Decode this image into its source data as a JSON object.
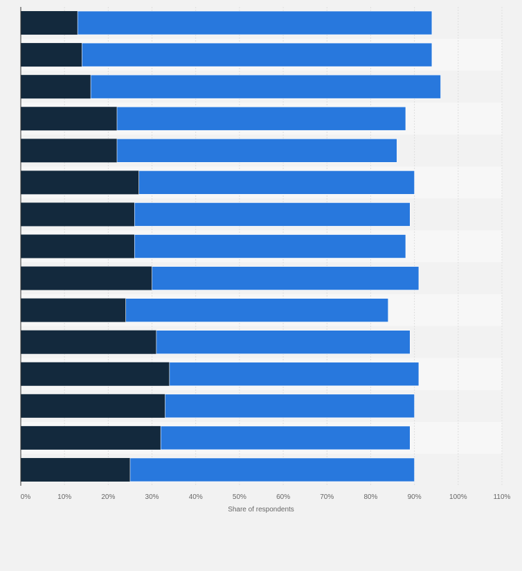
{
  "chart_data": {
    "type": "bar",
    "orientation": "horizontal",
    "stacked": true,
    "categories": [
      "",
      "",
      "",
      "",
      "",
      "",
      "",
      "",
      "",
      "",
      "",
      "",
      "",
      "",
      ""
    ],
    "series": [
      {
        "color": "#13293d",
        "values": [
          13,
          14,
          16,
          22,
          22,
          27,
          26,
          26,
          30,
          24,
          31,
          34,
          33,
          32,
          25
        ]
      },
      {
        "color": "#2878dd",
        "values": [
          81,
          80,
          80,
          66,
          64,
          63,
          63,
          62,
          61,
          60,
          58,
          57,
          57,
          57,
          65
        ]
      }
    ],
    "xlim": [
      0,
      110
    ],
    "x_ticks": [
      "0%",
      "10%",
      "20%",
      "30%",
      "40%",
      "50%",
      "60%",
      "70%",
      "80%",
      "90%",
      "100%",
      "110%"
    ],
    "xlabel": "Share of respondents",
    "ylabel": "",
    "title": "",
    "grid": true,
    "legend": "none"
  },
  "colors": {
    "background": "#f2f2f2",
    "band_light": "#f7f7f7",
    "band_dark": "#f2f2f2",
    "gridline": "#dddddd",
    "axis_line": "#333333",
    "tick_text": "#666666"
  }
}
